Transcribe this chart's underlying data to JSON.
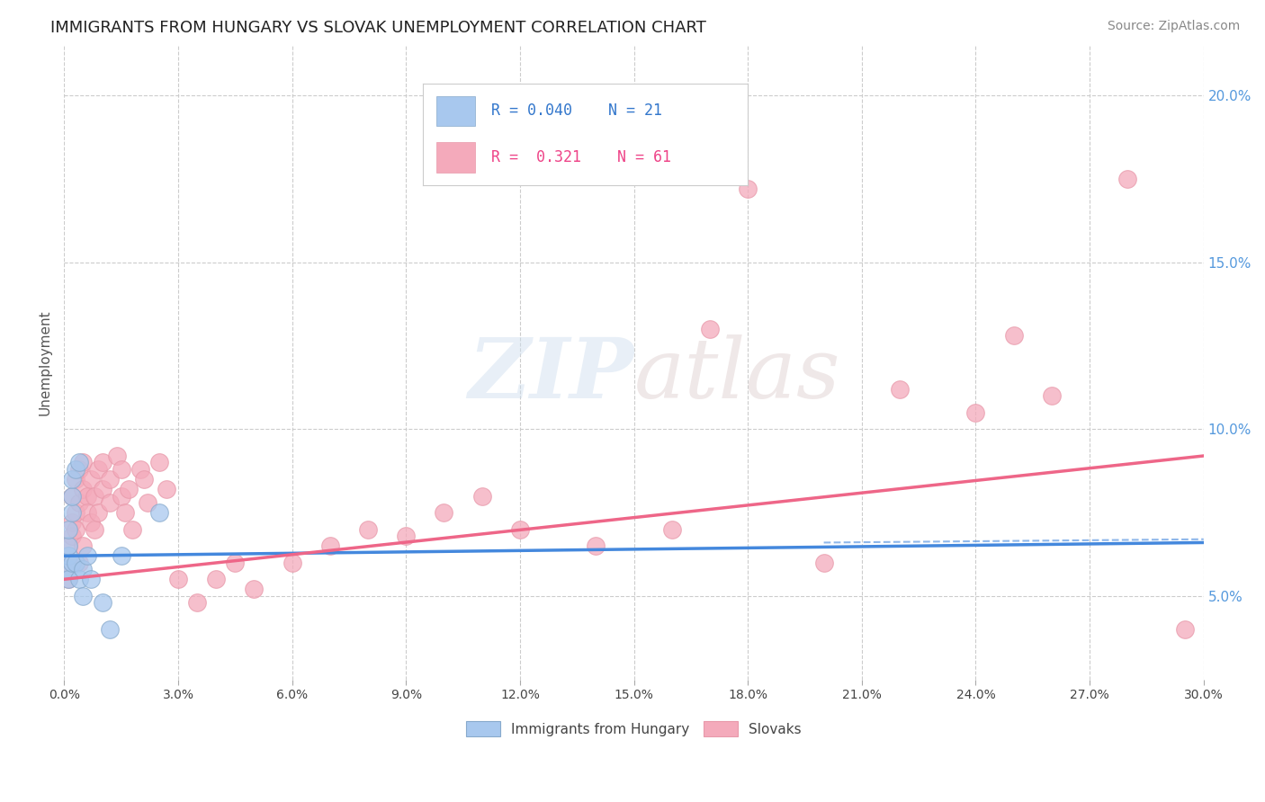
{
  "title": "IMMIGRANTS FROM HUNGARY VS SLOVAK UNEMPLOYMENT CORRELATION CHART",
  "source_text": "Source: ZipAtlas.com",
  "ylabel": "Unemployment",
  "xlim": [
    0.0,
    0.3
  ],
  "ylim": [
    0.025,
    0.215
  ],
  "xticks": [
    0.0,
    0.03,
    0.06,
    0.09,
    0.12,
    0.15,
    0.18,
    0.21,
    0.24,
    0.27,
    0.3
  ],
  "yticks": [
    0.05,
    0.1,
    0.15,
    0.2
  ],
  "blue_R": "0.040",
  "blue_N": "21",
  "pink_R": "0.321",
  "pink_N": "61",
  "blue_color": "#A8C8EE",
  "pink_color": "#F4AABB",
  "blue_line_color": "#4488DD",
  "pink_line_color": "#EE6688",
  "grid_color": "#CCCCCC",
  "background_color": "#FFFFFF",
  "blue_line_x0": 0.0,
  "blue_line_y0": 0.062,
  "blue_line_x1": 0.3,
  "blue_line_y1": 0.066,
  "pink_line_x0": 0.0,
  "pink_line_y0": 0.055,
  "pink_line_x1": 0.3,
  "pink_line_y1": 0.092,
  "blue_scatter_x": [
    0.001,
    0.001,
    0.001,
    0.001,
    0.001,
    0.002,
    0.002,
    0.002,
    0.002,
    0.003,
    0.003,
    0.004,
    0.004,
    0.005,
    0.005,
    0.006,
    0.007,
    0.01,
    0.012,
    0.015,
    0.025
  ],
  "blue_scatter_y": [
    0.058,
    0.062,
    0.055,
    0.065,
    0.07,
    0.075,
    0.08,
    0.085,
    0.06,
    0.088,
    0.06,
    0.09,
    0.055,
    0.05,
    0.058,
    0.062,
    0.055,
    0.048,
    0.04,
    0.062,
    0.075
  ],
  "pink_scatter_x": [
    0.001,
    0.001,
    0.001,
    0.002,
    0.002,
    0.002,
    0.003,
    0.003,
    0.003,
    0.004,
    0.004,
    0.004,
    0.005,
    0.005,
    0.005,
    0.006,
    0.006,
    0.007,
    0.007,
    0.008,
    0.008,
    0.009,
    0.009,
    0.01,
    0.01,
    0.012,
    0.012,
    0.014,
    0.015,
    0.015,
    0.016,
    0.017,
    0.018,
    0.02,
    0.021,
    0.022,
    0.025,
    0.027,
    0.03,
    0.035,
    0.04,
    0.045,
    0.05,
    0.06,
    0.07,
    0.08,
    0.09,
    0.1,
    0.11,
    0.12,
    0.14,
    0.16,
    0.18,
    0.2,
    0.22,
    0.24,
    0.26,
    0.28,
    0.295,
    0.25,
    0.17
  ],
  "pink_scatter_y": [
    0.06,
    0.065,
    0.055,
    0.068,
    0.08,
    0.072,
    0.075,
    0.085,
    0.07,
    0.078,
    0.088,
    0.06,
    0.082,
    0.09,
    0.065,
    0.08,
    0.075,
    0.085,
    0.072,
    0.08,
    0.07,
    0.088,
    0.075,
    0.09,
    0.082,
    0.078,
    0.085,
    0.092,
    0.08,
    0.088,
    0.075,
    0.082,
    0.07,
    0.088,
    0.085,
    0.078,
    0.09,
    0.082,
    0.055,
    0.048,
    0.055,
    0.06,
    0.052,
    0.06,
    0.065,
    0.07,
    0.068,
    0.075,
    0.08,
    0.07,
    0.065,
    0.07,
    0.172,
    0.06,
    0.112,
    0.105,
    0.11,
    0.175,
    0.04,
    0.128,
    0.13
  ]
}
